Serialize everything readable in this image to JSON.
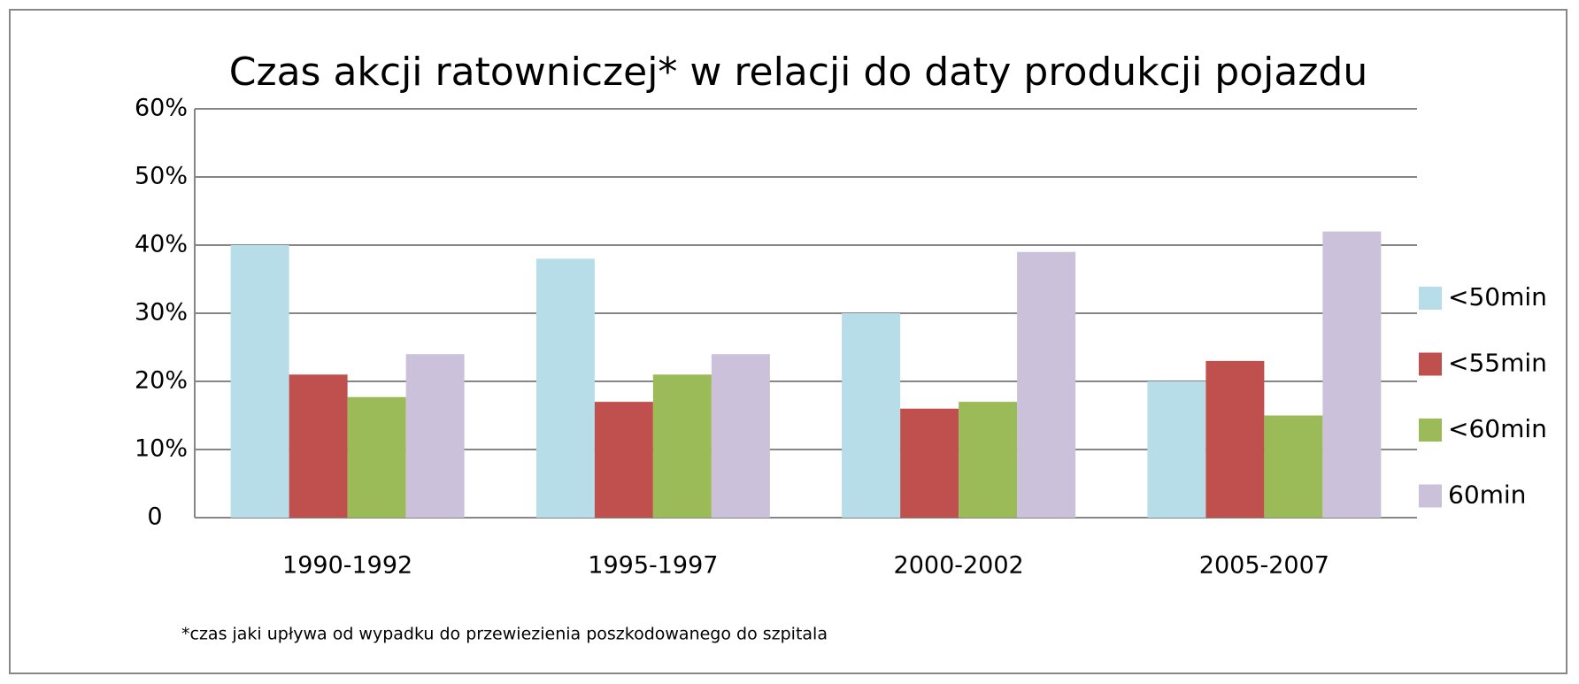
{
  "chart_data": {
    "type": "bar",
    "title": "Czas akcji ratowniczej* w relacji do daty produkcji pojazdu",
    "footnote": "*czas jaki upływa od wypadku do przewiezienia poszkodowanego do szpitala",
    "categories": [
      "1990-1992",
      "1995-1997",
      "2000-2002",
      "2005-2007"
    ],
    "series": [
      {
        "name": "<50min",
        "color": "#b7dde8",
        "values": [
          40,
          38,
          30,
          20
        ]
      },
      {
        "name": "<55min",
        "color": "#c0504d",
        "values": [
          21,
          17,
          16,
          23
        ]
      },
      {
        "name": "<60min",
        "color": "#9bbb59",
        "values": [
          17.7,
          21,
          17,
          15
        ]
      },
      {
        "name": "60min",
        "color": "#ccc1da",
        "values": [
          24,
          24,
          39,
          42
        ]
      }
    ],
    "ylim": [
      0,
      60
    ],
    "yticks": [
      0,
      {
        "value": 10,
        "label": "10%"
      },
      {
        "value": 20,
        "label": "20%"
      },
      {
        "value": 30,
        "label": "30%"
      },
      {
        "value": 40,
        "label": "40%"
      },
      {
        "value": 50,
        "label": "50%"
      },
      {
        "value": 60,
        "label": "60%"
      }
    ],
    "grid": true,
    "legend": "right"
  }
}
